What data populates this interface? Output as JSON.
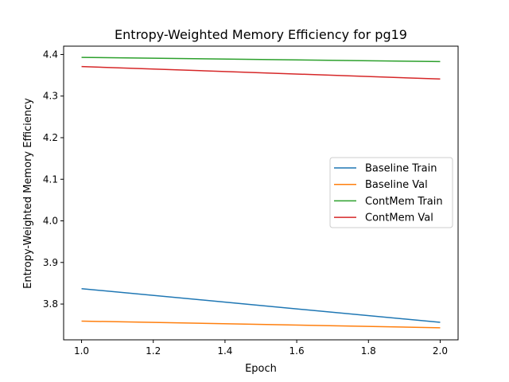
{
  "chart_data": {
    "type": "line",
    "title": "Entropy-Weighted Memory Efficiency for pg19",
    "xlabel": "Epoch",
    "ylabel": "Entropy-Weighted Memory Efficiency",
    "x": [
      1.0,
      2.0
    ],
    "xlim": [
      0.95,
      2.05
    ],
    "ylim": [
      3.714,
      4.42
    ],
    "xticks": [
      1.0,
      1.2,
      1.4,
      1.6,
      1.8,
      2.0
    ],
    "xtick_labels": [
      "1.0",
      "1.2",
      "1.4",
      "1.6",
      "1.8",
      "2.0"
    ],
    "yticks": [
      3.8,
      3.9,
      4.0,
      4.1,
      4.2,
      4.3,
      4.4
    ],
    "ytick_labels": [
      "3.8",
      "3.9",
      "4.0",
      "4.1",
      "4.2",
      "4.3",
      "4.4"
    ],
    "grid": false,
    "legend_position": "center-right",
    "series": [
      {
        "name": "Baseline Train",
        "color": "#1f77b4",
        "values": [
          3.837,
          3.756
        ]
      },
      {
        "name": "Baseline Val",
        "color": "#ff7f0e",
        "values": [
          3.759,
          3.743
        ]
      },
      {
        "name": "ContMem Train",
        "color": "#2ca02c",
        "values": [
          4.393,
          4.383
        ]
      },
      {
        "name": "ContMem Val",
        "color": "#d62728",
        "values": [
          4.371,
          4.341
        ]
      }
    ]
  }
}
